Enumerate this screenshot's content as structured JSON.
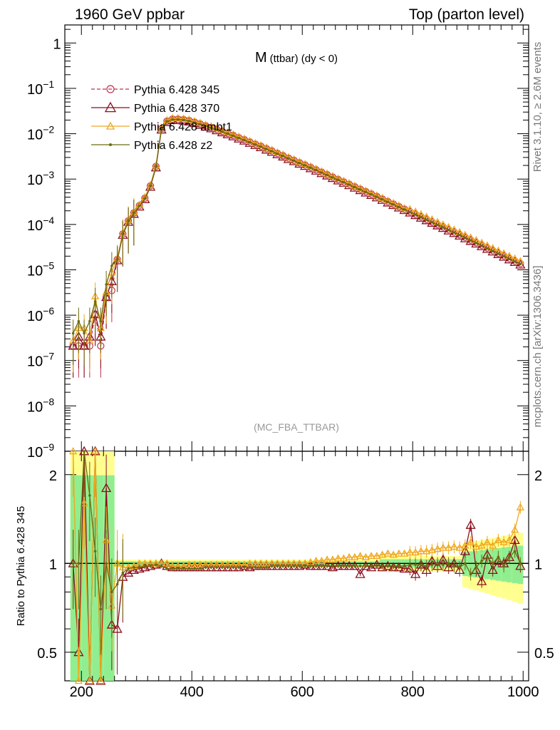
{
  "header": {
    "left": "1960 GeV ppbar",
    "right": "Top (parton level)"
  },
  "side_labels": {
    "rivet": "Rivet 3.1.10, ≥ 2.6M events",
    "mcplots": "mcplots.cern.ch [arXiv:1306.3436]"
  },
  "watermark": "(MC_FBA_TTBAR)",
  "chart_data": [
    {
      "type": "line",
      "title": "M (ttbar) (dy < 0)",
      "title_main": "M",
      "title_sub": "(ttbar) (dy < 0)",
      "xlabel": "",
      "ylabel": "",
      "yscale": "log",
      "xlim": [
        170,
        1010
      ],
      "ylim": [
        1e-09,
        2.5
      ],
      "ytick_labels": [
        {
          "base": "10",
          "exp": "−9",
          "v": 1e-09
        },
        {
          "base": "10",
          "exp": "−8",
          "v": 1e-08
        },
        {
          "base": "10",
          "exp": "−7",
          "v": 1e-07
        },
        {
          "base": "10",
          "exp": "−6",
          "v": 1e-06
        },
        {
          "base": "10",
          "exp": "−5",
          "v": 1e-05
        },
        {
          "base": "10",
          "exp": "−4",
          "v": 0.0001
        },
        {
          "base": "10",
          "exp": "−3",
          "v": 0.001
        },
        {
          "base": "10",
          "exp": "−2",
          "v": 0.01
        },
        {
          "base": "10",
          "exp": "−1",
          "v": 0.1
        },
        {
          "base": "1",
          "exp": "",
          "v": 1
        }
      ],
      "legend_position": "top-left",
      "series": [
        {
          "name": "Pythia 6.428 345",
          "color": "#c03050",
          "marker": "circle",
          "dashed": true
        },
        {
          "name": "Pythia 6.428 370",
          "color": "#8b0f1e",
          "marker": "triangle",
          "dashed": false
        },
        {
          "name": "Pythia 6.428 ambt1",
          "color": "#f0a81e",
          "marker": "triangle",
          "dashed": false
        },
        {
          "name": "Pythia 6.428 z2",
          "color": "#6b6b10",
          "marker": "dot",
          "dashed": false
        }
      ],
      "x": [
        185,
        195,
        205,
        215,
        225,
        235,
        245,
        255,
        265,
        275,
        285,
        295,
        305,
        315,
        325,
        335,
        345,
        355,
        365,
        375,
        385,
        395,
        405,
        415,
        425,
        435,
        445,
        455,
        465,
        475,
        485,
        495,
        505,
        515,
        525,
        535,
        545,
        555,
        565,
        575,
        585,
        595,
        605,
        615,
        625,
        635,
        645,
        655,
        665,
        675,
        685,
        695,
        705,
        715,
        725,
        735,
        745,
        755,
        765,
        775,
        785,
        795,
        805,
        815,
        825,
        835,
        845,
        855,
        865,
        875,
        885,
        895,
        905,
        915,
        925,
        935,
        945,
        955,
        965,
        975,
        985,
        995
      ],
      "values": [
        2.1e-07,
        2.1e-07,
        2.1e-07,
        2.1e-07,
        1.05e-06,
        2.1e-07,
        2.5e-06,
        3.5e-06,
        1.7e-05,
        6.2e-05,
        0.00012,
        0.00018,
        0.00026,
        0.00038,
        0.00071,
        0.0019,
        0.013,
        0.019,
        0.021,
        0.021,
        0.0205,
        0.0195,
        0.018,
        0.0165,
        0.015,
        0.0138,
        0.0125,
        0.0113,
        0.0102,
        0.0092,
        0.0082,
        0.0074,
        0.0066,
        0.0059,
        0.0053,
        0.0047,
        0.0042,
        0.0037,
        0.0033,
        0.0029,
        0.0026,
        0.0023,
        0.00205,
        0.00182,
        0.00161,
        0.00142,
        0.00126,
        0.00111,
        0.00098,
        0.00087,
        0.00077,
        0.00068,
        0.0006,
        0.00053,
        0.00047,
        0.000415,
        0.000365,
        0.00032,
        0.000282,
        0.000248,
        0.000218,
        0.000192,
        0.000169,
        0.000148,
        0.00013,
        0.000114,
        0.0001,
        8.8e-05,
        7.7e-05,
        6.8e-05,
        5.95e-05,
        5.2e-05,
        4.55e-05,
        3.98e-05,
        3.48e-05,
        3.04e-05,
        2.66e-05,
        2.33e-05,
        2.04e-05,
        1.78e-05,
        1.56e-05,
        1.37e-05
      ]
    },
    {
      "type": "line",
      "title": "",
      "xlabel": "",
      "ylabel": "Ratio to Pythia 6.428 345",
      "yscale": "log",
      "xlim": [
        170,
        1010
      ],
      "ylim": [
        0.4,
        2.4
      ],
      "ytick_labels": [
        {
          "label": "0.5",
          "v": 0.5
        },
        {
          "label": "1",
          "v": 1
        },
        {
          "label": "2",
          "v": 2
        }
      ],
      "xtick_labels": [
        {
          "label": "200",
          "v": 200
        },
        {
          "label": "400",
          "v": 400
        },
        {
          "label": "600",
          "v": 600
        },
        {
          "label": "800",
          "v": 800
        },
        {
          "label": "1000",
          "v": 1000
        }
      ],
      "reference_line": 1,
      "series": [
        {
          "name": "Pythia 6.428 370",
          "values": [
            1.0,
            0.5,
            2.4,
            0.4,
            2.4,
            0.4,
            1.8,
            0.62,
            0.6,
            0.9,
            0.93,
            0.95,
            0.96,
            0.97,
            0.98,
            0.99,
            1.0,
            0.98,
            0.97,
            0.97,
            0.97,
            0.97,
            0.97,
            0.97,
            0.97,
            0.97,
            0.97,
            0.97,
            0.97,
            0.97,
            0.97,
            0.98,
            0.97,
            0.98,
            0.98,
            0.98,
            0.98,
            0.98,
            0.98,
            0.98,
            0.98,
            0.98,
            0.99,
            0.98,
            0.98,
            0.98,
            0.98,
            0.97,
            0.98,
            0.98,
            0.98,
            0.98,
            0.92,
            0.98,
            0.97,
            0.99,
            0.97,
            0.98,
            0.97,
            0.97,
            0.96,
            0.96,
            0.92,
            0.99,
            0.95,
            1.02,
            0.98,
            1.03,
            0.97,
            1.0,
            0.95,
            1.1,
            1.35,
            0.95,
            0.87,
            1.07,
            0.95,
            1.02,
            1.0,
            1.05,
            1.2,
            0.98
          ]
        },
        {
          "name": "Pythia 6.428 ambt1",
          "values": [
            2.4,
            0.4,
            1.6,
            0.4,
            2.4,
            0.4,
            1.2,
            0.72,
            1.0,
            0.97,
            0.97,
            0.98,
            1.0,
            1.0,
            1.0,
            1.0,
            1.0,
            1.0,
            0.98,
            0.98,
            0.98,
            0.99,
            0.99,
            0.99,
            0.99,
            0.99,
            0.99,
            0.99,
            0.99,
            0.99,
            0.99,
            0.99,
            1.0,
            1.0,
            1.0,
            1.0,
            1.0,
            1.0,
            1.0,
            1.0,
            1.0,
            1.0,
            1.0,
            1.01,
            1.02,
            1.02,
            1.03,
            1.03,
            1.04,
            1.04,
            1.05,
            1.05,
            1.06,
            1.05,
            1.06,
            1.06,
            1.07,
            1.08,
            1.07,
            1.08,
            1.08,
            1.09,
            1.09,
            1.1,
            1.1,
            1.11,
            1.12,
            1.13,
            1.13,
            1.14,
            1.13,
            1.15,
            1.18,
            1.14,
            1.15,
            1.18,
            1.15,
            1.2,
            1.18,
            1.2,
            1.3,
            1.55
          ]
        },
        {
          "name": "Pythia 6.428 z2",
          "values": [
            1.0,
            1.0,
            2.4,
            1.7,
            1.1,
            0.7,
            1.0,
            0.8,
            0.85,
            0.93,
            0.96,
            0.97,
            0.97,
            0.98,
            0.98,
            0.99,
            0.98,
            0.96,
            0.96,
            0.96,
            0.96,
            0.96,
            0.96,
            0.96,
            0.97,
            0.97,
            0.97,
            0.97,
            0.97,
            0.97,
            0.97,
            0.97,
            0.97,
            0.97,
            0.97,
            0.97,
            0.98,
            0.98,
            0.98,
            0.98,
            0.98,
            0.98,
            0.98,
            0.98,
            0.98,
            0.98,
            0.98,
            0.98,
            0.98,
            0.98,
            0.98,
            0.98,
            0.98,
            0.98,
            0.98,
            0.98,
            0.98,
            0.98,
            0.98,
            0.98,
            0.98,
            0.99,
            0.99,
            0.99,
            0.98,
            0.99,
            1.0,
            0.99,
            1.0,
            0.98,
            0.97,
            1.0,
            0.92,
            0.97,
            1.02,
            1.05,
            1.0,
            1.05,
            0.98,
            1.05,
            1.1,
            1.0
          ]
        }
      ],
      "band_color_inner": "#90ee90",
      "band_color_outer": "#ffff90"
    }
  ]
}
